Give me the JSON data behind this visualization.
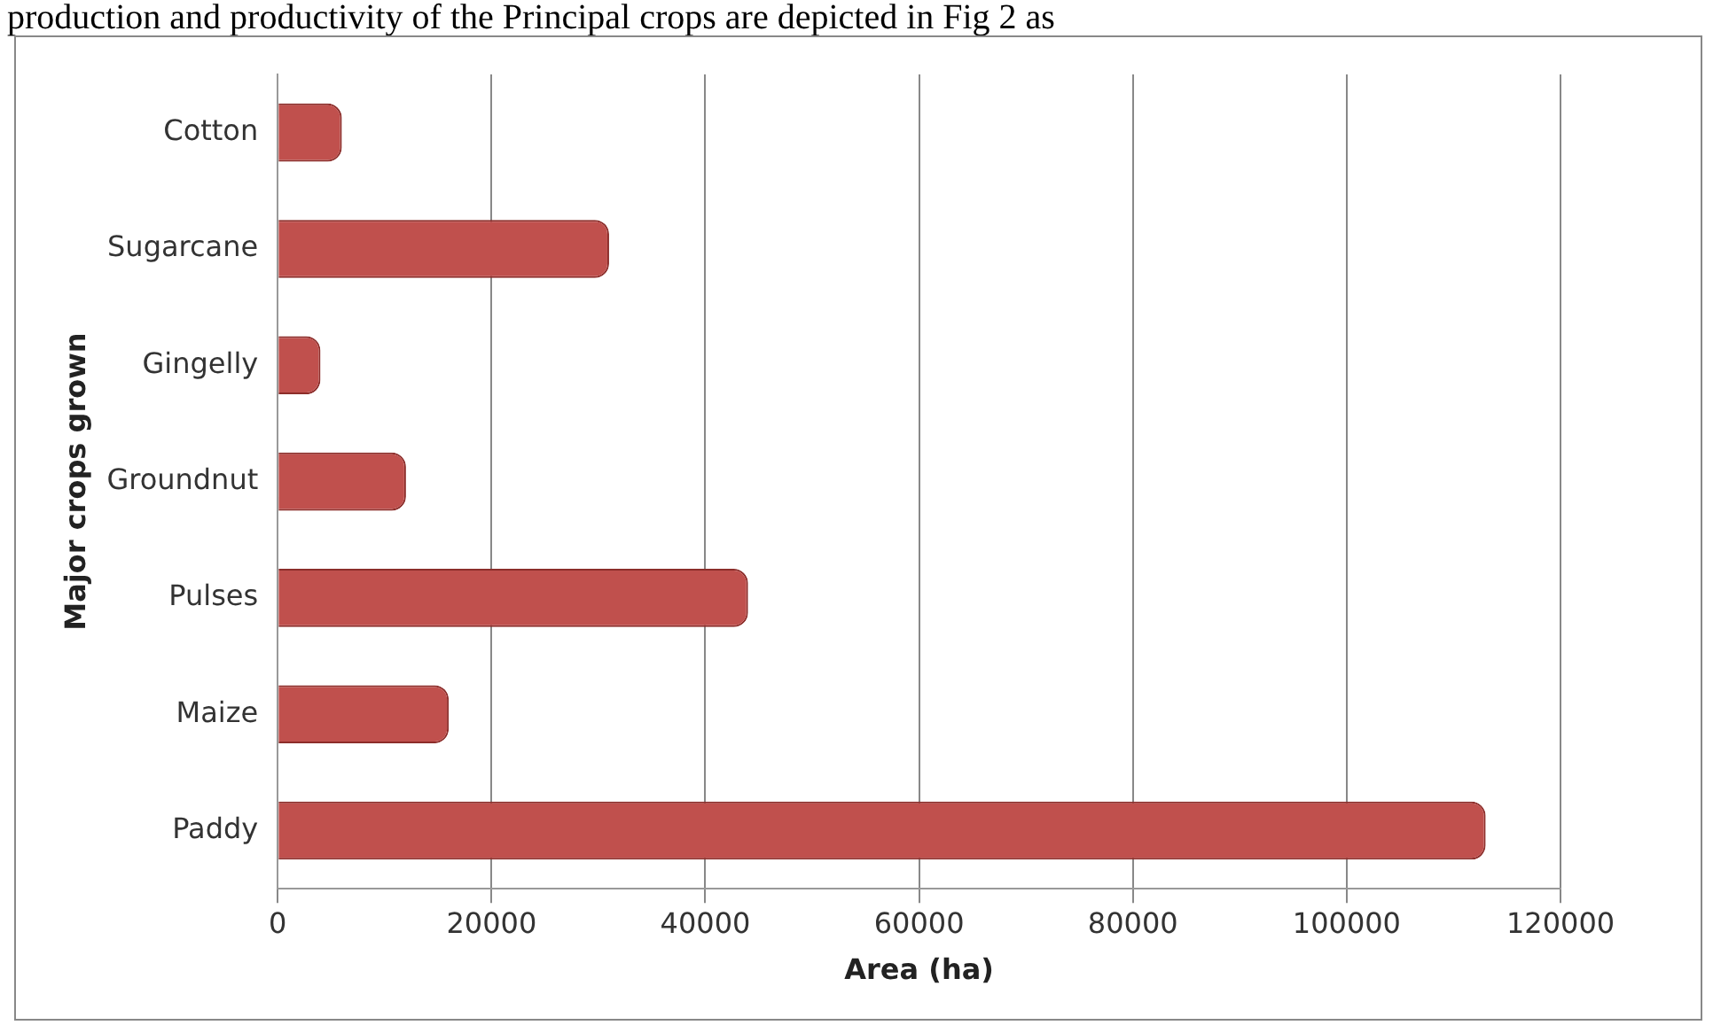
{
  "chart_data": {
    "type": "bar",
    "orientation": "horizontal",
    "ylabel": "Major crops grown",
    "xlabel": "Area (ha)",
    "annotations": [
      "production and productivity of the Principal crops are depicted in Fig 2 as"
    ],
    "categories": [
      "Cotton",
      "Sugarcane",
      "Gingelly",
      "Groundnut",
      "Pulses",
      "Maize",
      "Paddy"
    ],
    "values": [
      6000,
      31000,
      4000,
      12000,
      44000,
      16000,
      113000
    ],
    "color": "#c0504d",
    "xlim": [
      0,
      120000
    ],
    "xticks": [
      0,
      20000,
      40000,
      60000,
      80000,
      100000,
      120000
    ],
    "grid": "x"
  }
}
